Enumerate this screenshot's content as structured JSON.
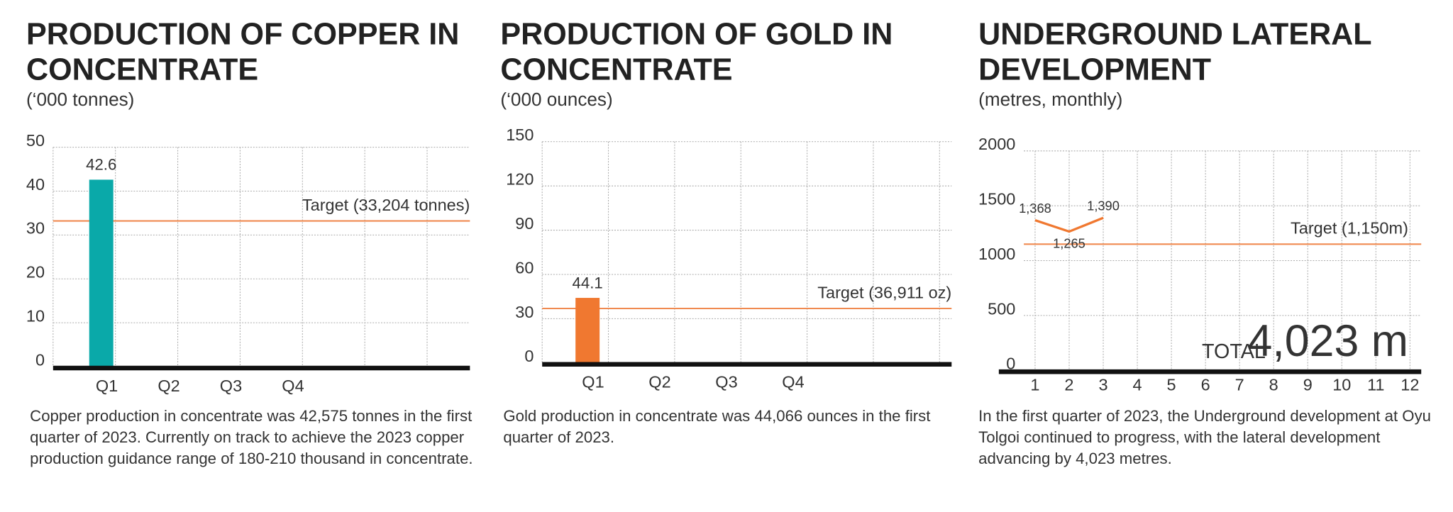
{
  "chart_data": [
    {
      "type": "bar",
      "title": "PRODUCTION OF COPPER IN CONCENTRATE",
      "subtitle": "(‘000 tonnes)",
      "categories": [
        "Q1",
        "Q2",
        "Q3",
        "Q4"
      ],
      "values": [
        42.6,
        null,
        null,
        null
      ],
      "color": "#0aa9a9",
      "ylim": [
        0,
        50
      ],
      "yticks": [
        0,
        10,
        20,
        30,
        40,
        50
      ],
      "grid": true,
      "target": {
        "value": 33.204,
        "label": "Target (33,204 tonnes)",
        "color": "#f08a50"
      },
      "description": "Copper production in concentrate was 42,575 tonnes in the first quarter of 2023. Currently on track to achieve the 2023 copper production guidance range of 180-210 thousand in concentrate."
    },
    {
      "type": "bar",
      "title": "PRODUCTION OF GOLD IN CONCENTRATE",
      "subtitle": "(‘000 ounces)",
      "categories": [
        "Q1",
        "Q2",
        "Q3",
        "Q4"
      ],
      "values": [
        44.1,
        null,
        null,
        null
      ],
      "color": "#f07830",
      "ylim": [
        0,
        150
      ],
      "yticks": [
        0,
        30,
        60,
        90,
        120,
        150
      ],
      "grid": true,
      "target": {
        "value": 36.911,
        "label": "Target (36,911 oz)",
        "color": "#f08a50"
      },
      "description": "Gold production in concentrate was 44,066 ounces in the first quarter of 2023."
    },
    {
      "type": "line",
      "title": "UNDERGROUND LATERAL DEVELOPMENT",
      "subtitle": "(metres, monthly)",
      "x": [
        1,
        2,
        3,
        4,
        5,
        6,
        7,
        8,
        9,
        10,
        11,
        12
      ],
      "xlim": [
        0.67,
        12.33
      ],
      "xticks": [
        1,
        2,
        3,
        4,
        5,
        6,
        7,
        8,
        9,
        10,
        11,
        12
      ],
      "values": [
        1368,
        1265,
        1390,
        null,
        null,
        null,
        null,
        null,
        null,
        null,
        null,
        null
      ],
      "value_labels": [
        "1,368",
        "1,265",
        "1,390",
        null,
        null,
        null,
        null,
        null,
        null,
        null,
        null,
        null
      ],
      "color": "#f07830",
      "ylim": [
        0,
        2000
      ],
      "yticks": [
        0,
        500,
        1000,
        1500,
        2000
      ],
      "grid": true,
      "target": {
        "value": 1150,
        "label": "Target (1,150m)",
        "color": "#f08a50"
      },
      "total_label": "TOTAL",
      "total_value": "4,023 m",
      "total_color": "#0aa9a9",
      "description": "In the first quarter of 2023, the Underground development at Oyu Tolgoi continued to progress, with the lateral development advancing by 4,023 metres."
    }
  ]
}
